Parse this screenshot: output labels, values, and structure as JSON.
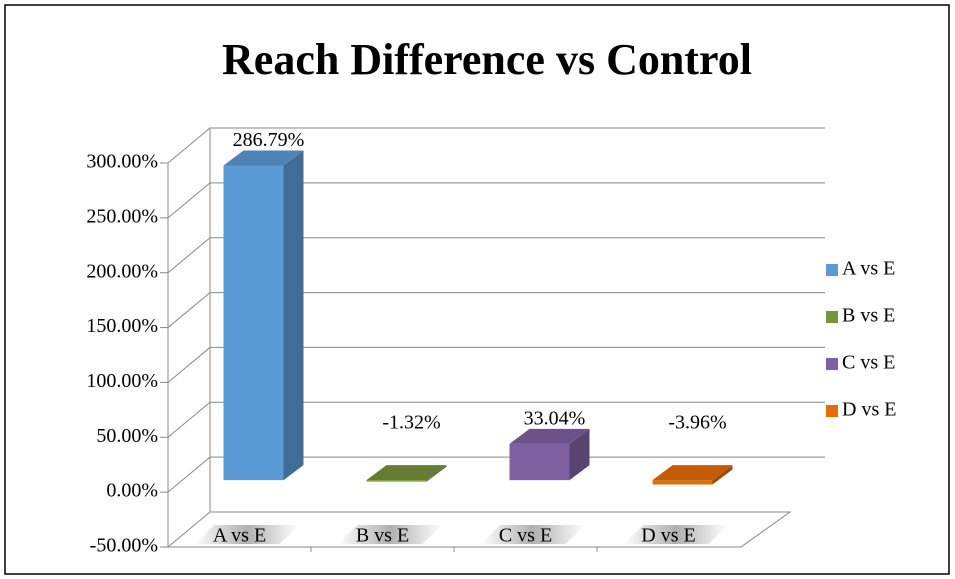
{
  "chart_data": {
    "type": "bar3d",
    "title": "Reach Difference vs Control",
    "categories": [
      "A vs E",
      "B vs E",
      "C vs E",
      "D vs E"
    ],
    "values": [
      286.79,
      -1.32,
      33.04,
      -3.96
    ],
    "value_labels": [
      "286.79%",
      "-1.32%",
      "33.04%",
      "-3.96%"
    ],
    "colors": [
      "#5b9bd5",
      "#77933c",
      "#7f60a0",
      "#e46c0a"
    ],
    "ylim": [
      -50,
      300
    ],
    "yticks": [
      {
        "value": -50,
        "label": "-50.00%"
      },
      {
        "value": 0,
        "label": "0.00%"
      },
      {
        "value": 50,
        "label": "50.00%"
      },
      {
        "value": 100,
        "label": "100.00%"
      },
      {
        "value": 150,
        "label": "150.00%"
      },
      {
        "value": 200,
        "label": "200.00%"
      },
      {
        "value": 250,
        "label": "250.00%"
      },
      {
        "value": 300,
        "label": "300.00%"
      }
    ],
    "grid": true,
    "legend": "right"
  }
}
